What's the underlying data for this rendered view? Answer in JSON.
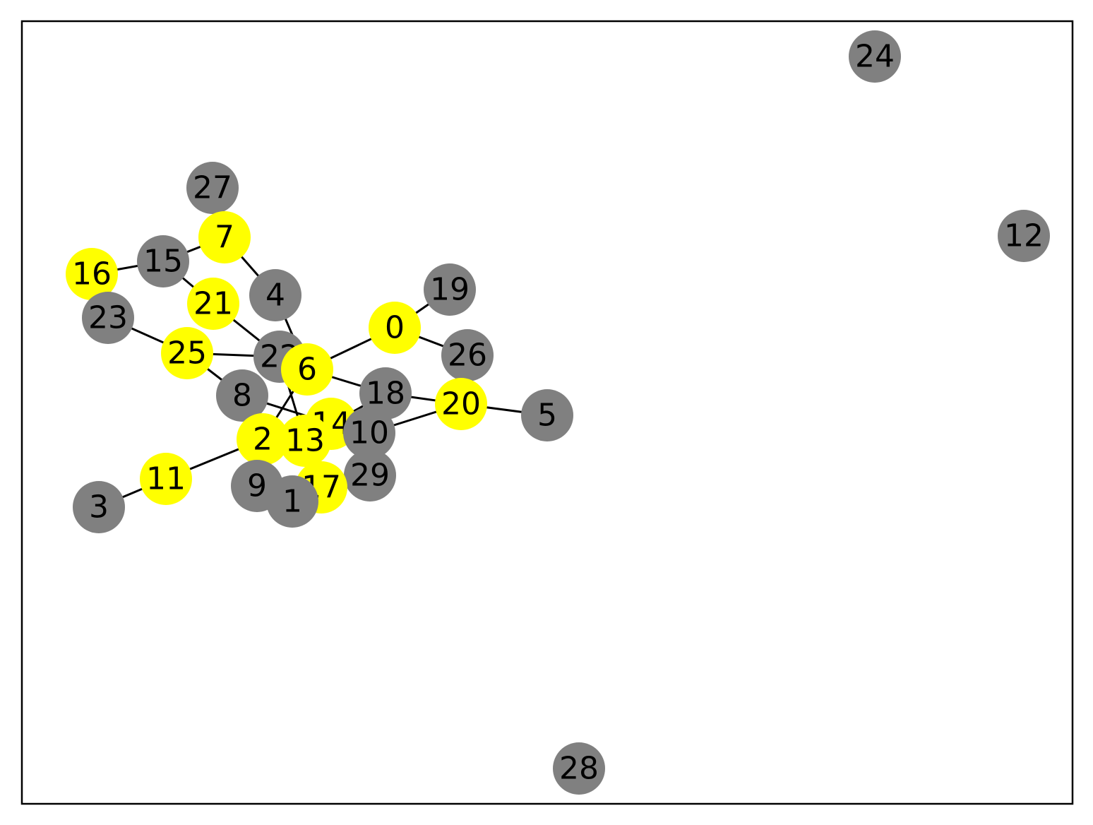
{
  "colors": {
    "highlight": "#ffff00",
    "default": "#808080",
    "edge": "#000000",
    "frame": "#000000"
  },
  "nodes": [
    {
      "id": "0",
      "label": "0",
      "highlighted": true
    },
    {
      "id": "1",
      "label": "1",
      "highlighted": false
    },
    {
      "id": "2",
      "label": "2",
      "highlighted": true
    },
    {
      "id": "3",
      "label": "3",
      "highlighted": false
    },
    {
      "id": "4",
      "label": "4",
      "highlighted": false
    },
    {
      "id": "5",
      "label": "5",
      "highlighted": false
    },
    {
      "id": "6",
      "label": "6",
      "highlighted": true
    },
    {
      "id": "7",
      "label": "7",
      "highlighted": true
    },
    {
      "id": "8",
      "label": "8",
      "highlighted": false
    },
    {
      "id": "9",
      "label": "9",
      "highlighted": false
    },
    {
      "id": "10",
      "label": "10",
      "highlighted": false
    },
    {
      "id": "11",
      "label": "11",
      "highlighted": true
    },
    {
      "id": "12",
      "label": "12",
      "highlighted": false
    },
    {
      "id": "13",
      "label": "13",
      "highlighted": true
    },
    {
      "id": "14",
      "label": "14",
      "highlighted": true
    },
    {
      "id": "15",
      "label": "15",
      "highlighted": false
    },
    {
      "id": "16",
      "label": "16",
      "highlighted": true
    },
    {
      "id": "17",
      "label": "17",
      "highlighted": true
    },
    {
      "id": "18",
      "label": "18",
      "highlighted": false
    },
    {
      "id": "19",
      "label": "19",
      "highlighted": false
    },
    {
      "id": "20",
      "label": "20",
      "highlighted": true
    },
    {
      "id": "21",
      "label": "21",
      "highlighted": true
    },
    {
      "id": "22",
      "label": "22",
      "highlighted": false
    },
    {
      "id": "23",
      "label": "23",
      "highlighted": false
    },
    {
      "id": "24",
      "label": "24",
      "highlighted": false
    },
    {
      "id": "25",
      "label": "25",
      "highlighted": true
    },
    {
      "id": "26",
      "label": "26",
      "highlighted": false
    },
    {
      "id": "27",
      "label": "27",
      "highlighted": false
    },
    {
      "id": "28",
      "label": "28",
      "highlighted": false
    },
    {
      "id": "29",
      "label": "29",
      "highlighted": false
    }
  ],
  "edges": [
    [
      "0",
      "19"
    ],
    [
      "0",
      "26"
    ],
    [
      "0",
      "6"
    ],
    [
      "6",
      "4"
    ],
    [
      "6",
      "18"
    ],
    [
      "6",
      "2"
    ],
    [
      "7",
      "15"
    ],
    [
      "7",
      "4"
    ],
    [
      "15",
      "16"
    ],
    [
      "15",
      "21"
    ],
    [
      "21",
      "22"
    ],
    [
      "22",
      "25"
    ],
    [
      "22",
      "13"
    ],
    [
      "25",
      "23"
    ],
    [
      "25",
      "8"
    ],
    [
      "8",
      "14"
    ],
    [
      "2",
      "11"
    ],
    [
      "11",
      "3"
    ],
    [
      "18",
      "20"
    ],
    [
      "18",
      "14"
    ],
    [
      "20",
      "5"
    ],
    [
      "20",
      "10"
    ],
    [
      "13",
      "17"
    ]
  ]
}
